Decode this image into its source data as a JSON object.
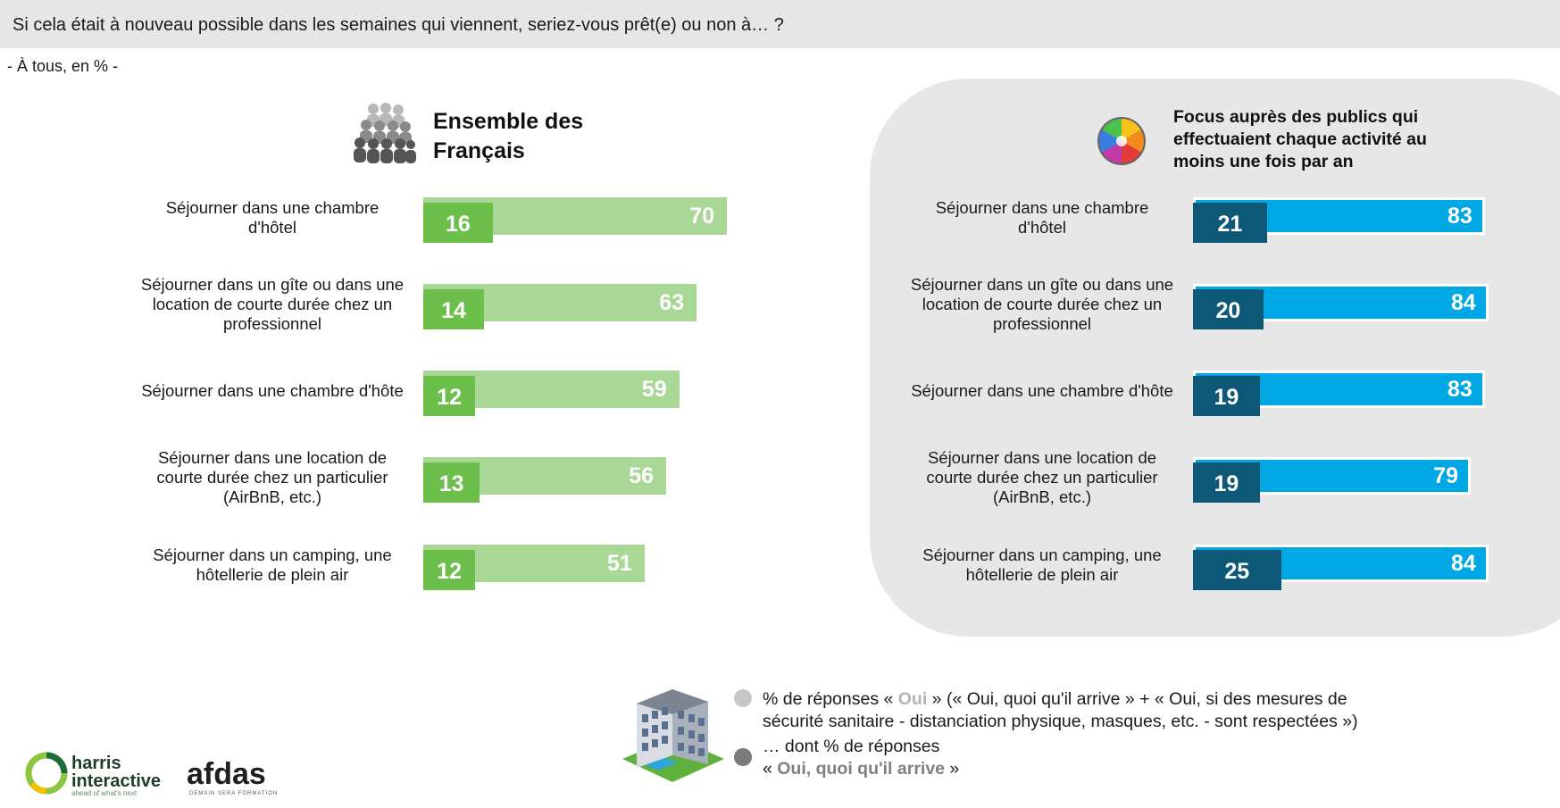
{
  "header": {
    "question": "Si cela était à nouveau possible dans les semaines qui viennent, seriez-vous prêt(e) ou non à… ?",
    "base": "- À tous, en % -"
  },
  "chart_data": [
    {
      "type": "bar",
      "orientation": "horizontal",
      "title": "Ensemble des Français",
      "categories": [
        "Séjourner dans une chambre d'hôtel",
        "Séjourner dans un gîte ou dans une location de courte durée chez un professionnel",
        "Séjourner dans une chambre d'hôte",
        "Séjourner dans une location de courte durée chez un particulier (AirBnB, etc.)",
        "Séjourner dans un camping, une hôtellerie de plein air"
      ],
      "series": [
        {
          "name": "% de réponses « Oui »",
          "values": [
            70,
            63,
            59,
            56,
            51
          ],
          "color": "#a9d796"
        },
        {
          "name": "« Oui, quoi qu'il arrive »",
          "values": [
            16,
            14,
            12,
            13,
            12
          ],
          "color": "#6cbf4a"
        }
      ],
      "xlim": [
        0,
        100
      ]
    },
    {
      "type": "bar",
      "orientation": "horizontal",
      "title": "Focus auprès des publics qui effectuaient chaque activité au moins une fois par an",
      "categories": [
        "Séjourner dans une chambre d'hôtel",
        "Séjourner dans un gîte ou dans une location de courte durée chez un professionnel",
        "Séjourner dans une chambre d'hôte",
        "Séjourner dans une location de courte durée chez un particulier (AirBnB, etc.)",
        "Séjourner dans un camping, une hôtellerie de plein air"
      ],
      "series": [
        {
          "name": "% de réponses « Oui »",
          "values": [
            83,
            84,
            83,
            79,
            84
          ],
          "color": "#00a7e5"
        },
        {
          "name": "« Oui, quoi qu'il arrive »",
          "values": [
            21,
            20,
            19,
            19,
            25
          ],
          "color": "#0d5876"
        }
      ],
      "xlim": [
        0,
        100
      ]
    }
  ],
  "labels_lines": [
    [
      "Séjourner dans une chambre",
      "d'hôtel"
    ],
    [
      "Séjourner dans un gîte ou dans une",
      "location de courte durée chez un",
      "professionnel"
    ],
    [
      "Séjourner dans une chambre d'hôte"
    ],
    [
      "Séjourner dans une location de",
      "courte durée chez un particulier",
      "(AirBnB, etc.)"
    ],
    [
      "Séjourner dans un camping, une",
      "hôtellerie de plein air"
    ]
  ],
  "left_title_lines": [
    "Ensemble des",
    "Français"
  ],
  "right_title_lines": [
    "Focus auprès des publics qui",
    "effectuaient chaque activité au",
    "moins une fois par an"
  ],
  "legend": {
    "line1_prefix": "% de réponses « ",
    "line1_kw": "Oui",
    "line1_suffix": " » (« Oui, quoi qu'il arrive » + « Oui, si des mesures de",
    "line2": "sécurité sanitaire - distanciation physique, masques, etc. - sont respectées »)",
    "line3": "… dont % de réponses",
    "line4_prefix": "« ",
    "line4_kw": "Oui, quoi qu'il arrive",
    "line4_suffix": " »",
    "dot_colors": [
      "#c8c8c8",
      "#7a7a7a"
    ]
  },
  "logos": {
    "harris_line1": "harris",
    "harris_line2": "interactive",
    "harris_tagline": "ahead of what's next",
    "afdas": "afdas",
    "afdas_tagline": "DEMAIN SERA FORMATION"
  },
  "icons": {
    "left": "people-group-icon",
    "right": "color-wheel-icon",
    "legend": "hotel-building-icon",
    "harris": "harris-ring-logo"
  }
}
